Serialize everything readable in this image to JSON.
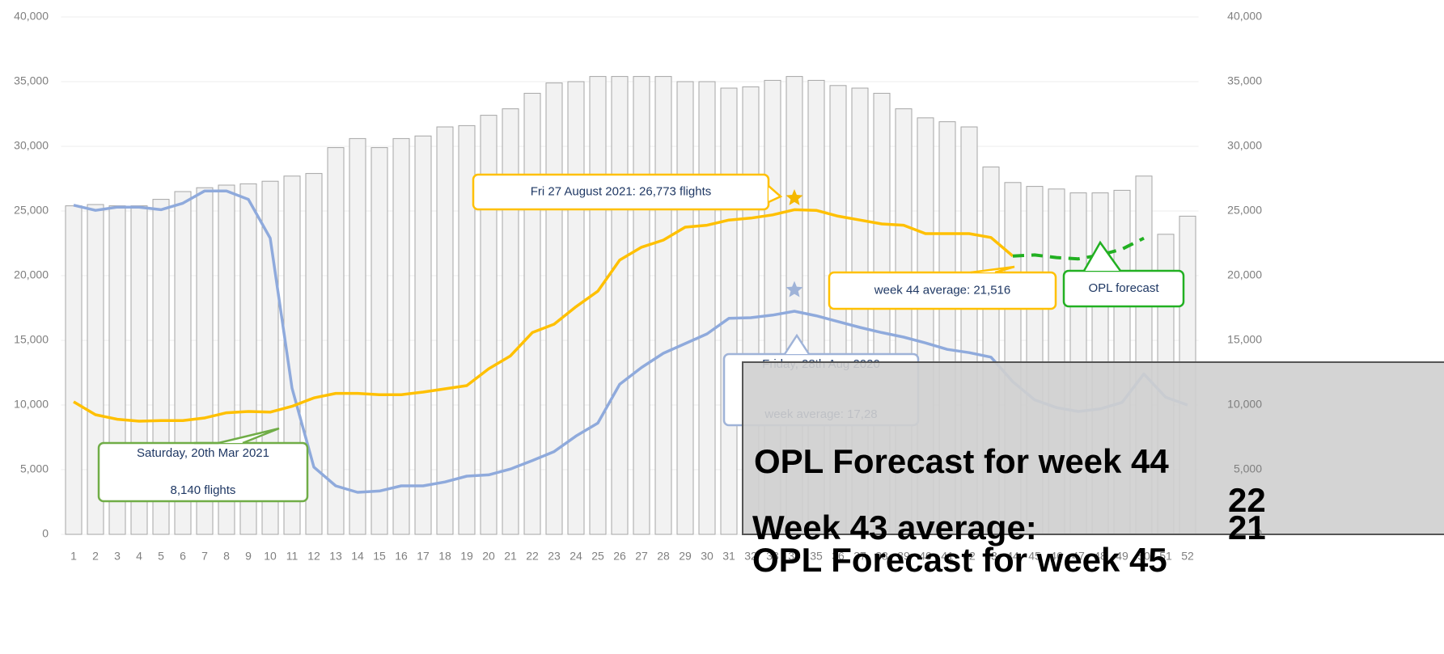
{
  "chart_data": {
    "type": "bar",
    "categories": [
      "1",
      "2",
      "3",
      "4",
      "5",
      "6",
      "7",
      "8",
      "9",
      "10",
      "11",
      "12",
      "13",
      "14",
      "15",
      "16",
      "17",
      "18",
      "19",
      "20",
      "21",
      "22",
      "23",
      "24",
      "25",
      "26",
      "27",
      "28",
      "29",
      "30",
      "31",
      "32",
      "33",
      "34",
      "35",
      "36",
      "37",
      "38",
      "39",
      "40",
      "41",
      "42",
      "43",
      "44",
      "45",
      "46",
      "47",
      "48",
      "49",
      "50",
      "51",
      "52"
    ],
    "series": [
      {
        "type": "bar",
        "color": "#f2f2f2",
        "stroke": "#a6a6a6",
        "values": [
          25400,
          25500,
          25400,
          25400,
          25900,
          26500,
          26800,
          27000,
          27100,
          27300,
          27700,
          27900,
          29900,
          30600,
          29900,
          30600,
          30800,
          31500,
          31600,
          32400,
          32900,
          34100,
          34900,
          35000,
          35400,
          35400,
          35400,
          35400,
          35000,
          35000,
          34500,
          34600,
          35100,
          35400,
          35100,
          34700,
          34500,
          34100,
          32900,
          32200,
          31900,
          31500,
          28400,
          27200,
          26900,
          26700,
          26400,
          26400,
          26600,
          27700,
          23200,
          24600
        ]
      },
      {
        "type": "line",
        "color": "#8faadc",
        "values": [
          25450,
          25050,
          25300,
          25300,
          25100,
          25600,
          26550,
          26550,
          25900,
          22900,
          11300,
          5200,
          3750,
          3250,
          3350,
          3750,
          3750,
          4050,
          4500,
          4600,
          5050,
          5700,
          6400,
          7600,
          8600,
          11600,
          12900,
          14000,
          14750,
          15500,
          16700,
          16750,
          16950,
          17250,
          16900,
          16450,
          16000,
          15600,
          15250,
          14800,
          14300,
          14050,
          13700,
          11800,
          10400,
          9800,
          9500,
          9700,
          10200,
          12400,
          10600,
          10000
        ]
      },
      {
        "type": "line",
        "color": "#ffc000",
        "values": [
          10250,
          9250,
          8900,
          8750,
          8800,
          8800,
          9000,
          9400,
          9500,
          9450,
          9900,
          10550,
          10900,
          10900,
          10800,
          10800,
          11000,
          11250,
          11500,
          12800,
          13800,
          15600,
          16250,
          17600,
          18800,
          21200,
          22200,
          22750,
          23750,
          23900,
          24300,
          24450,
          24700,
          25100,
          25050,
          24600,
          24300,
          24000,
          23900,
          23250,
          23250,
          23250,
          22950,
          21516,
          null,
          null,
          null,
          null,
          null,
          null,
          null,
          null
        ]
      },
      {
        "type": "line",
        "color": "#22b022",
        "dash": true,
        "values": [
          null,
          null,
          null,
          null,
          null,
          null,
          null,
          null,
          null,
          null,
          null,
          null,
          null,
          null,
          null,
          null,
          null,
          null,
          null,
          null,
          null,
          null,
          null,
          null,
          null,
          null,
          null,
          null,
          null,
          null,
          null,
          null,
          null,
          null,
          null,
          null,
          null,
          null,
          null,
          null,
          null,
          null,
          null,
          21516,
          21600,
          21400,
          21300,
          21600,
          22050,
          22900,
          null,
          null
        ]
      }
    ],
    "markers": [
      {
        "x": "34",
        "value": 26000,
        "color": "#f5b800"
      },
      {
        "x": "34",
        "value": 18900,
        "color": "#9fb3d8"
      }
    ],
    "ylim": [
      0,
      40000
    ],
    "yticks": [
      {
        "value": 0,
        "label": "0"
      },
      {
        "value": 5000,
        "label": "5,000"
      },
      {
        "value": 10000,
        "label": "10,000"
      },
      {
        "value": 15000,
        "label": "15,000"
      },
      {
        "value": 20000,
        "label": "20,000"
      },
      {
        "value": 25000,
        "label": "25,000"
      },
      {
        "value": 30000,
        "label": "30,000"
      },
      {
        "value": 35000,
        "label": "35,000"
      },
      {
        "value": 40000,
        "label": "40,000"
      }
    ],
    "y2lim": [
      0,
      40000
    ],
    "y2ticks": [
      {
        "value": 0,
        "label": "0"
      },
      {
        "value": 5000,
        "label": "5,000"
      },
      {
        "value": 10000,
        "label": "10,000"
      },
      {
        "value": 15000,
        "label": "15,000"
      },
      {
        "value": 20000,
        "label": "20,000"
      },
      {
        "value": 25000,
        "label": "25,000"
      },
      {
        "value": 30000,
        "label": "30,000"
      },
      {
        "value": 35000,
        "label": "35,000"
      },
      {
        "value": 40000,
        "label": "40,000"
      }
    ],
    "grid": true,
    "annotations": [
      {
        "lines": [
          "Fri 27 August 2021: 26,773 flights"
        ],
        "color": "#ffc000"
      },
      {
        "lines": [
          "week 44 average: 21,516"
        ],
        "color": "#ffc000"
      },
      {
        "lines": [
          "OPL forecast"
        ],
        "color": "#22b022"
      },
      {
        "lines": [
          "Friday, 28th Aug 2020",
          "week average: 17,28"
        ],
        "color": "#9fb3d8"
      },
      {
        "lines": [
          "Saturday, 20th Mar 2021",
          "8,140 flights"
        ],
        "color": "#70ad47"
      }
    ],
    "overlay": [
      "OPL Forecast for week 44",
      "22",
      "Week 43 average:",
      "21",
      "OPL Forecast for week 45"
    ]
  }
}
